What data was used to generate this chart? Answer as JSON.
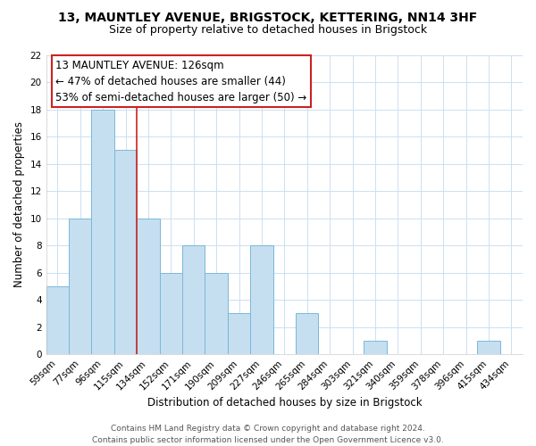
{
  "title": "13, MAUNTLEY AVENUE, BRIGSTOCK, KETTERING, NN14 3HF",
  "subtitle": "Size of property relative to detached houses in Brigstock",
  "xlabel": "Distribution of detached houses by size in Brigstock",
  "ylabel": "Number of detached properties",
  "bar_labels": [
    "59sqm",
    "77sqm",
    "96sqm",
    "115sqm",
    "134sqm",
    "152sqm",
    "171sqm",
    "190sqm",
    "209sqm",
    "227sqm",
    "246sqm",
    "265sqm",
    "284sqm",
    "303sqm",
    "321sqm",
    "340sqm",
    "359sqm",
    "378sqm",
    "396sqm",
    "415sqm",
    "434sqm"
  ],
  "bar_values": [
    5,
    10,
    18,
    15,
    10,
    6,
    8,
    6,
    3,
    8,
    0,
    3,
    0,
    0,
    1,
    0,
    0,
    0,
    0,
    1,
    0
  ],
  "bar_color": "#c5dff0",
  "bar_edge_color": "#7ab8d8",
  "vline_x_index": 3.5,
  "vline_color": "#cc2222",
  "annotation_line1": "13 MAUNTLEY AVENUE: 126sqm",
  "annotation_line2": "← 47% of detached houses are smaller (44)",
  "annotation_line3": "53% of semi-detached houses are larger (50) →",
  "annotation_box_edge_color": "#cc2222",
  "annotation_box_face_color": "#ffffff",
  "ylim": [
    0,
    22
  ],
  "yticks": [
    0,
    2,
    4,
    6,
    8,
    10,
    12,
    14,
    16,
    18,
    20,
    22
  ],
  "grid_color": "#cce0f0",
  "background_color": "#ffffff",
  "footer_line1": "Contains HM Land Registry data © Crown copyright and database right 2024.",
  "footer_line2": "Contains public sector information licensed under the Open Government Licence v3.0.",
  "title_fontsize": 10,
  "subtitle_fontsize": 9,
  "xlabel_fontsize": 8.5,
  "ylabel_fontsize": 8.5,
  "tick_fontsize": 7.5,
  "annotation_fontsize": 8.5,
  "footer_fontsize": 6.5
}
